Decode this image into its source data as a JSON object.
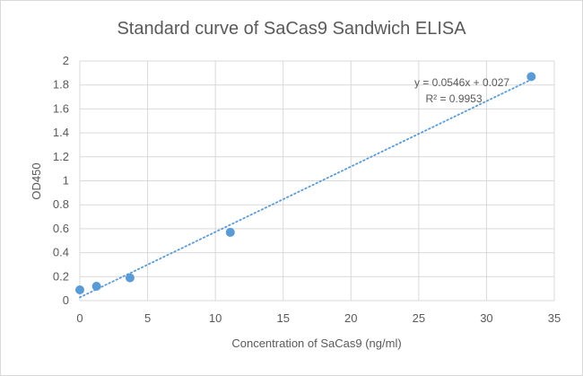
{
  "chart_data": {
    "type": "scatter",
    "title": "Standard curve of SaCas9 Sandwich ELISA",
    "xlabel": "Concentration of SaCas9 (ng/ml)",
    "ylabel": "OD450",
    "xlim": [
      0,
      35
    ],
    "ylim": [
      0,
      2
    ],
    "x_ticks": [
      "0",
      "5",
      "10",
      "15",
      "20",
      "25",
      "30",
      "35"
    ],
    "y_ticks": [
      "0",
      "0.2",
      "0.4",
      "0.6",
      "0.8",
      "1",
      "1.2",
      "1.4",
      "1.6",
      "1.8",
      "2"
    ],
    "grid": true,
    "legend": false,
    "series": [
      {
        "color": "#5b9bd5",
        "points": [
          {
            "x": 0,
            "y": 0.09
          },
          {
            "x": 1.23,
            "y": 0.12
          },
          {
            "x": 3.7,
            "y": 0.19
          },
          {
            "x": 11.1,
            "y": 0.57
          },
          {
            "x": 33.3,
            "y": 1.87
          }
        ]
      }
    ],
    "trendline": {
      "type": "linear",
      "slope": 0.0546,
      "intercept": 0.027,
      "style": "dotted",
      "color": "#5b9bd5",
      "equation": "y = 0.0546x + 0.027",
      "r_squared": "R² = 0.9953"
    }
  }
}
